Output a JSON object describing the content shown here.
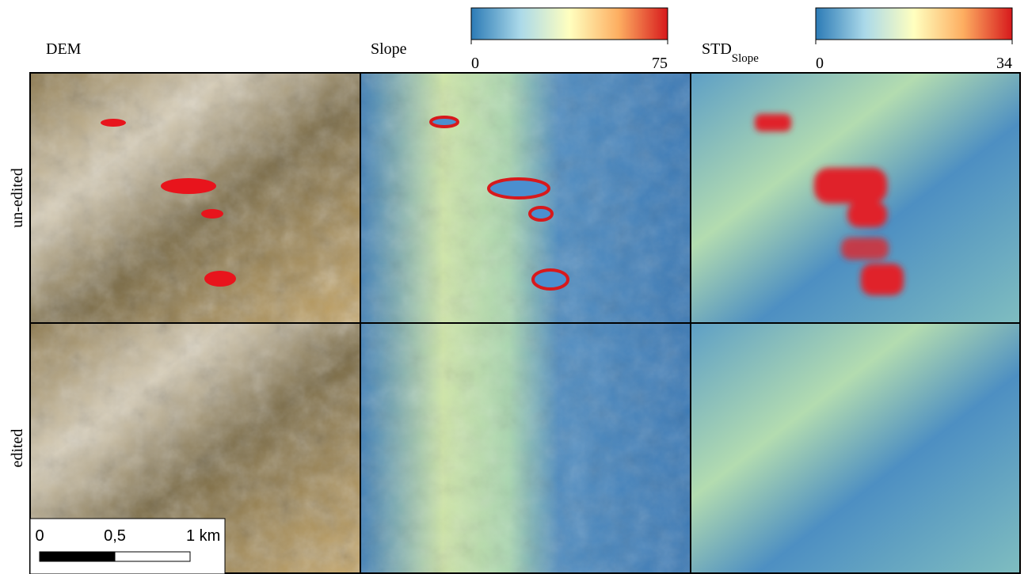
{
  "columns": [
    {
      "title": "DEM"
    },
    {
      "title": "Slope",
      "colorbar": {
        "range": [
          0,
          75
        ],
        "ticks": [
          0,
          75
        ]
      }
    },
    {
      "title": "STD",
      "subscript": "Slope",
      "colorbar": {
        "range": [
          0,
          34
        ],
        "ticks": [
          0,
          34
        ]
      }
    }
  ],
  "rows": [
    "un-edited",
    "edited"
  ],
  "scale_bar": {
    "range": [
      0,
      1
    ],
    "ticks": [
      0,
      {
        "value": 0.5,
        "label": "0,5"
      },
      {
        "value": 1,
        "label": "1 km"
      }
    ]
  }
}
